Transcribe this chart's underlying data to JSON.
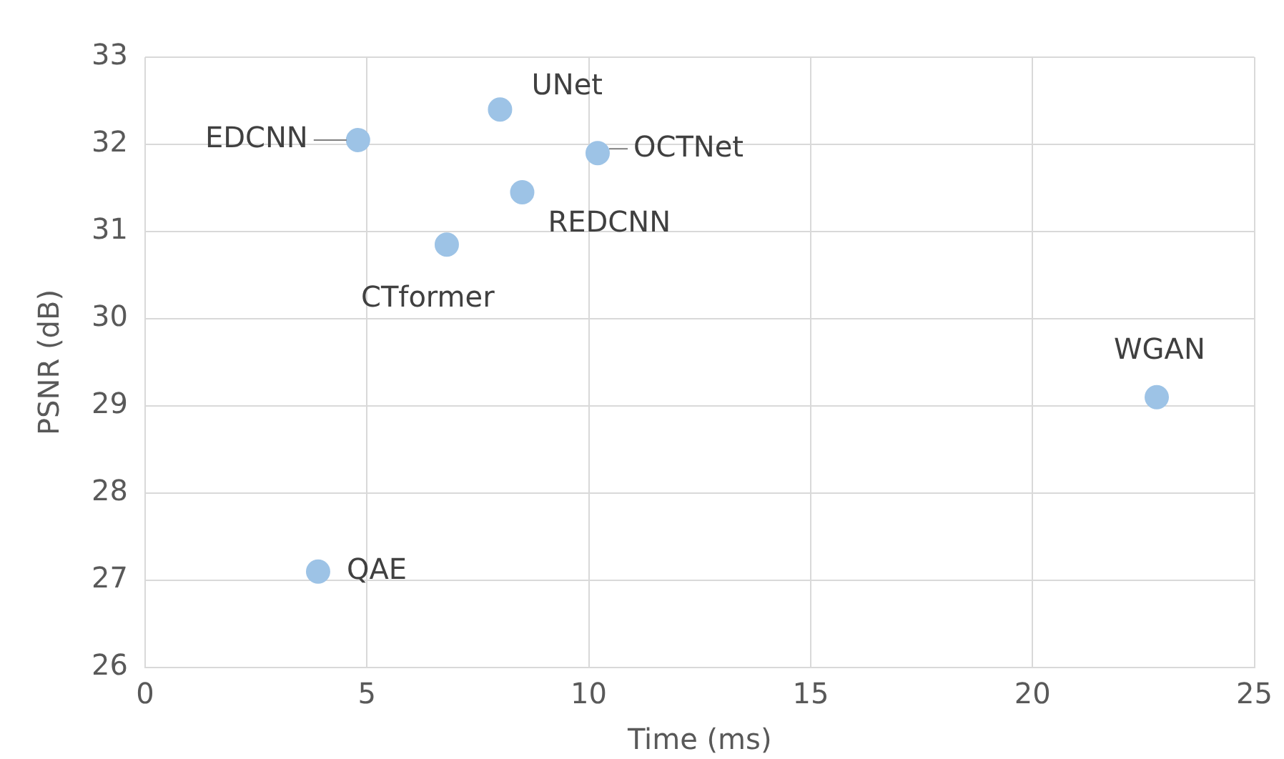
{
  "chart_data": {
    "type": "scatter",
    "xlabel": "Time (ms)",
    "ylabel": "PSNR (dB)",
    "x": [
      4.8,
      8.0,
      10.2,
      8.5,
      6.8,
      22.8,
      3.9
    ],
    "values": [
      32.05,
      32.4,
      31.9,
      31.45,
      30.85,
      29.1,
      27.1
    ],
    "color": "#9dc3e6",
    "marker": "circle",
    "xlim": [
      0,
      25
    ],
    "xticks": [
      0,
      5,
      10,
      15,
      20,
      25
    ],
    "ylim": [
      26,
      33
    ],
    "yticks": [
      26,
      27,
      28,
      29,
      30,
      31,
      32,
      33
    ],
    "grid": true,
    "legend": false,
    "annotations": [
      {
        "text": "EDCNN",
        "x": 4.8,
        "y": 32.05
      },
      {
        "text": "UNet",
        "x": 8.0,
        "y": 32.4
      },
      {
        "text": "OCTNet",
        "x": 10.2,
        "y": 31.9
      },
      {
        "text": "REDCNN",
        "x": 8.5,
        "y": 31.45
      },
      {
        "text": "CTformer",
        "x": 6.8,
        "y": 30.85
      },
      {
        "text": "WGAN",
        "x": 22.8,
        "y": 29.1
      },
      {
        "text": "QAE",
        "x": 3.9,
        "y": 27.1
      }
    ]
  }
}
